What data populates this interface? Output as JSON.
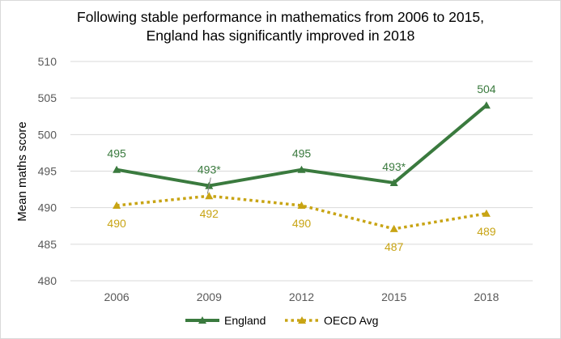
{
  "chart_data": {
    "type": "line",
    "title_lines": [
      "Following stable performance in mathematics from 2006 to 2015,",
      "England has significantly improved in 2018"
    ],
    "xlabel": "",
    "ylabel": "Mean maths score",
    "categories": [
      "2006",
      "2009",
      "2012",
      "2015",
      "2018"
    ],
    "ylim": [
      480,
      510
    ],
    "yticks": [
      480,
      485,
      490,
      495,
      500,
      505,
      510
    ],
    "grid": "horizontal",
    "legend_position": "bottom",
    "series": [
      {
        "name": "England",
        "values": [
          495.2,
          493.0,
          495.2,
          493.4,
          504.0
        ],
        "labels": [
          "495",
          "493*",
          "495",
          "493*",
          "504"
        ],
        "color": "#3a7a3e",
        "line_style": "solid",
        "marker": "triangle",
        "label_position": "above"
      },
      {
        "name": "OECD Avg",
        "values": [
          490.3,
          491.6,
          490.3,
          487.1,
          489.2
        ],
        "labels": [
          "490",
          "492",
          "490",
          "487",
          "489"
        ],
        "color": "#c8a414",
        "line_style": "dotted",
        "marker": "triangle",
        "label_position": "below"
      }
    ]
  }
}
